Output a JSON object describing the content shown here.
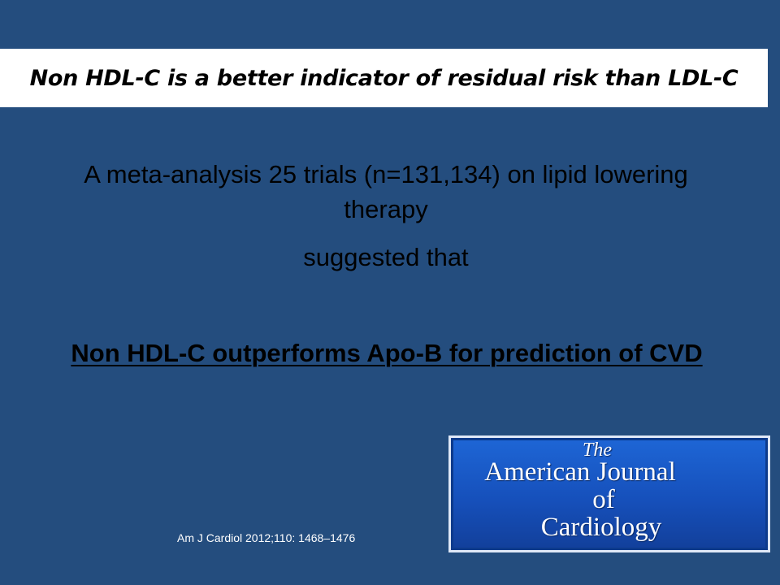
{
  "slide": {
    "title": "Non HDL-C is a better indicator of residual risk than LDL-C",
    "body_line_1": "A meta-analysis 25 trials (n=131,134) on lipid lowering",
    "body_line_2": "therapy",
    "body_line_3": "suggested that",
    "emphasis": "Non HDL-C outperforms Apo-B for prediction of CVD",
    "citation": "Am J Cardiol  2012;110: 1468–1476"
  },
  "journal_logo": {
    "the": "The",
    "name": "American Journal",
    "of": "of",
    "subject": "Cardiology"
  },
  "colors": {
    "background": "#244d7e",
    "title_band": "#ffffff",
    "logo_blue": "#1a58c4"
  }
}
